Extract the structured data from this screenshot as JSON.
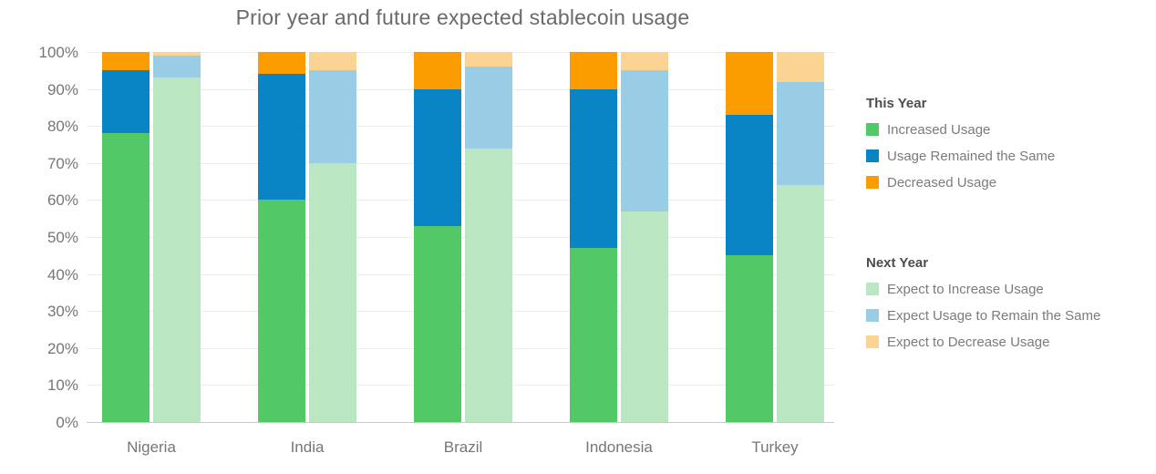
{
  "title": "Prior year and future expected stablecoin usage",
  "palette": {
    "increased_usage": "#52C866",
    "usage_remained_same": "#0984C5",
    "decreased_usage": "#FB9D00",
    "expect_increase_usage": "#BAE6C1",
    "expect_remain_same": "#99CDE5",
    "expect_decrease_usage": "#FBD392"
  },
  "legend": {
    "this_year": {
      "header": "This Year",
      "items": [
        {
          "label": "Increased Usage",
          "color": "increased_usage"
        },
        {
          "label": "Usage Remained the Same",
          "color": "usage_remained_same"
        },
        {
          "label": "Decreased Usage",
          "color": "decreased_usage"
        }
      ]
    },
    "next_year": {
      "header": "Next Year",
      "items": [
        {
          "label": "Expect to Increase Usage",
          "color": "expect_increase_usage"
        },
        {
          "label": "Expect Usage to Remain the Same",
          "color": "expect_remain_same"
        },
        {
          "label": "Expect to Decrease Usage",
          "color": "expect_decrease_usage"
        }
      ]
    }
  },
  "y_axis": {
    "tick_labels": [
      "100%",
      "90%",
      "80%",
      "70%",
      "60%",
      "50%",
      "40%",
      "30%",
      "20%",
      "10%",
      "0%"
    ]
  },
  "chart_data": {
    "type": "bar",
    "stacked": true,
    "grouped_pairs": [
      "This Year",
      "Next Year"
    ],
    "grid": true,
    "legend_position": "right",
    "title": "Prior year and future expected stablecoin usage",
    "xlabel": "",
    "ylabel": "",
    "ylim": [
      0,
      100
    ],
    "unit": "%",
    "categories": [
      "Nigeria",
      "India",
      "Brazil",
      "Indonesia",
      "Turkey"
    ],
    "series": [
      {
        "name": "Increased Usage",
        "group": "This Year",
        "color": "increased_usage",
        "values": [
          78,
          60,
          53,
          47,
          45
        ]
      },
      {
        "name": "Usage Remained the Same",
        "group": "This Year",
        "color": "usage_remained_same",
        "values": [
          17,
          34,
          37,
          43,
          38
        ]
      },
      {
        "name": "Decreased Usage",
        "group": "This Year",
        "color": "decreased_usage",
        "values": [
          5,
          6,
          10,
          10,
          17
        ]
      },
      {
        "name": "Expect to Increase Usage",
        "group": "Next Year",
        "color": "expect_increase_usage",
        "values": [
          93,
          70,
          74,
          57,
          64
        ]
      },
      {
        "name": "Expect Usage to Remain the Same",
        "group": "Next Year",
        "color": "expect_remain_same",
        "values": [
          6,
          25,
          22,
          38,
          28
        ]
      },
      {
        "name": "Expect to Decrease Usage",
        "group": "Next Year",
        "color": "expect_decrease_usage",
        "values": [
          1,
          5,
          4,
          5,
          8
        ]
      }
    ]
  }
}
